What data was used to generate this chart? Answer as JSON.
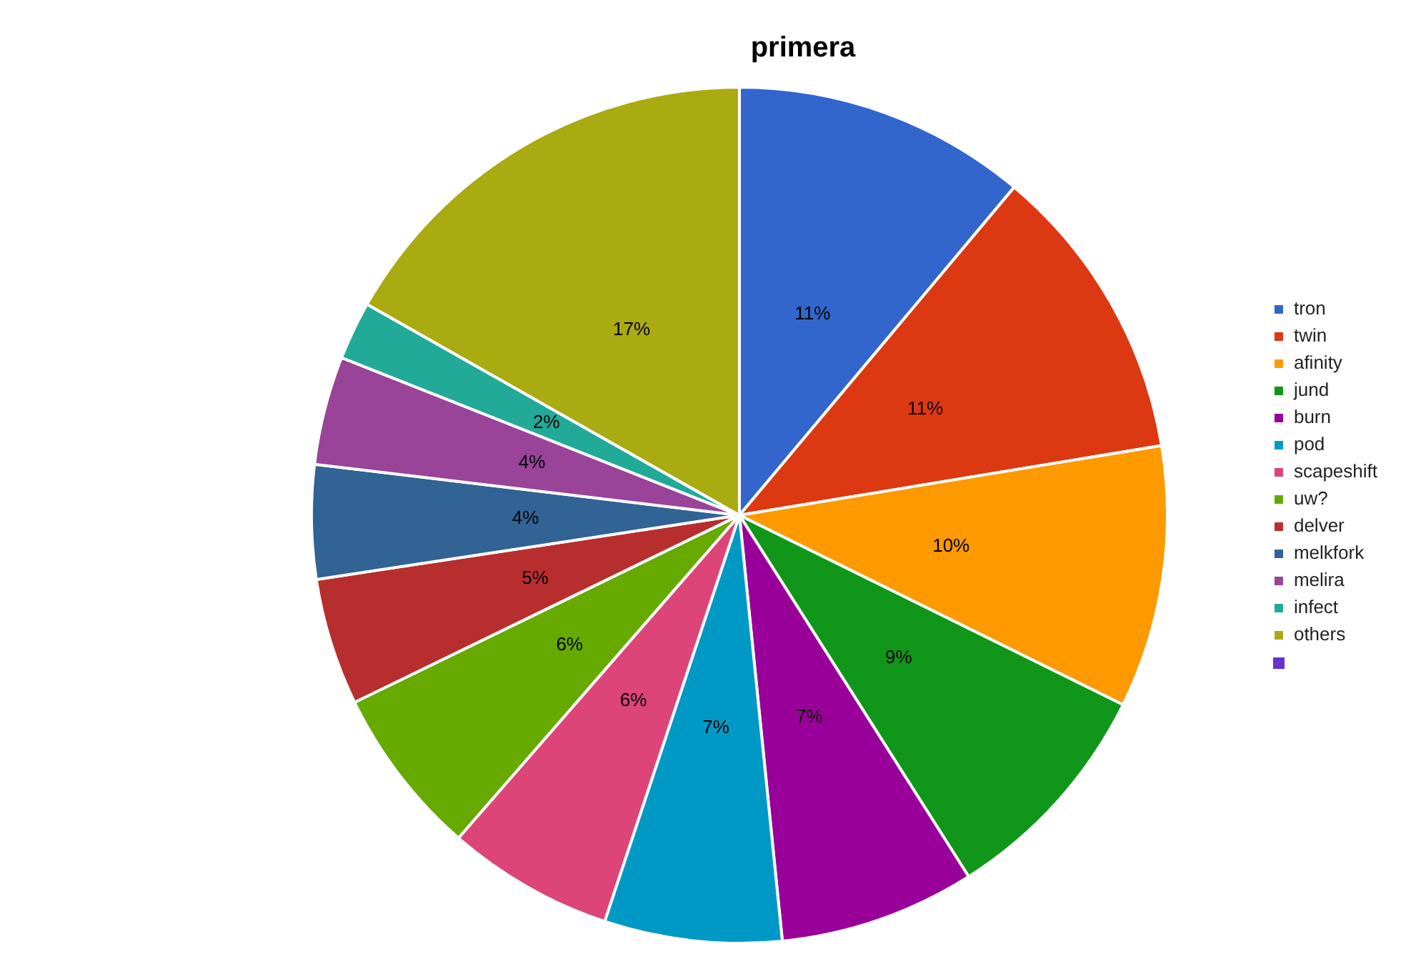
{
  "chart_data": {
    "type": "pie",
    "title": "primera",
    "categories": [
      "tron",
      "twin",
      "afinity",
      "jund",
      "burn",
      "pod",
      "scapeshift",
      "uw?",
      "delver",
      "melkfork",
      "melira",
      "infect",
      "others",
      null
    ],
    "values": [
      11.1,
      11.3,
      9.9,
      8.7,
      7.4,
      6.7,
      6.3,
      6.4,
      4.8,
      4.3,
      4.1,
      2.2,
      16.8,
      0
    ],
    "colors": [
      "#3366cc",
      "#dc3912",
      "#ff9900",
      "#109618",
      "#990099",
      "#0099c6",
      "#dd4477",
      "#66aa00",
      "#b82e2e",
      "#316395",
      "#994499",
      "#22aa99",
      "#aaaa11",
      "#6633cc"
    ],
    "value_labels": [
      "11%",
      "11%",
      "10%",
      "9%",
      "7%",
      "7%",
      "6%",
      "6%",
      "5%",
      "4%",
      "4%",
      "2%",
      "17%",
      null
    ],
    "legend": "right"
  }
}
